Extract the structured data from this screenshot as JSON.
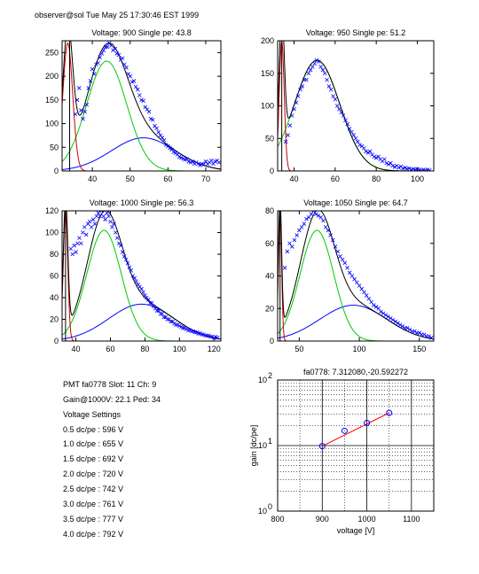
{
  "header": "observer@sol  Tue May 25 17:30:46 EST 1999",
  "info": {
    "pmt_line": "PMT fa0778 Slot: 11 Ch: 9",
    "gain_line": "Gain@1000V: 22.1 Ped: 34",
    "settings_title": "Voltage Settings",
    "settings": [
      "0.5 dc/pe : 596 V",
      "1.0 dc/pe : 655 V",
      "1.5 dc/pe : 692 V",
      "2.0 dc/pe : 720 V",
      "2.5 dc/pe : 742 V",
      "3.0 dc/pe : 761 V",
      "3.5 dc/pe : 777 V",
      "4.0 dc/pe : 792 V"
    ]
  },
  "colors": {
    "data_points": "#0000ff",
    "total_fit": "#000000",
    "single_pe_fit": "#00cc00",
    "double_pe_fit": "#0000ff",
    "pedestal": "#cc0000",
    "gain_fit": "#ff0000",
    "gain_points": "#0000ff"
  },
  "chart_data": [
    {
      "type": "scatter",
      "title": "Voltage: 900 Single pe: 43.8",
      "xlim": [
        32,
        74
      ],
      "ylim": [
        0,
        275
      ],
      "xticks": [
        40,
        50,
        60,
        70
      ],
      "yticks": [
        0,
        50,
        100,
        150,
        200,
        250
      ],
      "pedestal_x": 34,
      "fits": {
        "single": {
          "mu": 43.8,
          "sigma": 5.3,
          "amp": 232
        },
        "double": {
          "mu": 53.5,
          "sigma": 8.5,
          "amp": 70
        },
        "pedestal": {
          "mu": 33.5,
          "sigma": 1.3,
          "amp": 270
        }
      },
      "points": [
        [
          35.5,
          120
        ],
        [
          36,
          150
        ],
        [
          36.5,
          175
        ],
        [
          37,
          128
        ],
        [
          37.5,
          110
        ],
        [
          38,
          125
        ],
        [
          38.5,
          140
        ],
        [
          39,
          175
        ],
        [
          39.5,
          190
        ],
        [
          40,
          215
        ],
        [
          40.5,
          205
        ],
        [
          41,
          225
        ],
        [
          41.5,
          228
        ],
        [
          42,
          240
        ],
        [
          42.5,
          248
        ],
        [
          43,
          255
        ],
        [
          43.5,
          262
        ],
        [
          44,
          262
        ],
        [
          44.5,
          270
        ],
        [
          45,
          265
        ],
        [
          45.5,
          255
        ],
        [
          46,
          258
        ],
        [
          46.5,
          248
        ],
        [
          47,
          245
        ],
        [
          47.5,
          235
        ],
        [
          48,
          238
        ],
        [
          48.5,
          225
        ],
        [
          49,
          218
        ],
        [
          49.5,
          205
        ],
        [
          50,
          200
        ],
        [
          50.5,
          188
        ],
        [
          51,
          190
        ],
        [
          51.5,
          178
        ],
        [
          52,
          172
        ],
        [
          52.5,
          160
        ],
        [
          53,
          150
        ],
        [
          53.5,
          148
        ],
        [
          54,
          135
        ],
        [
          54.5,
          130
        ],
        [
          55,
          125
        ],
        [
          55.5,
          110
        ],
        [
          56,
          108
        ],
        [
          56.5,
          95
        ],
        [
          57,
          90
        ],
        [
          57.5,
          82
        ],
        [
          58,
          75
        ],
        [
          58.5,
          70
        ],
        [
          59,
          65
        ],
        [
          59.5,
          55
        ],
        [
          60,
          52
        ],
        [
          60.5,
          48
        ],
        [
          61,
          45
        ],
        [
          61.5,
          40
        ],
        [
          62,
          38
        ],
        [
          62.5,
          35
        ],
        [
          63,
          30
        ],
        [
          63.5,
          28
        ],
        [
          64,
          26
        ],
        [
          64.5,
          24
        ],
        [
          65,
          25
        ],
        [
          65.5,
          20
        ],
        [
          66,
          18
        ],
        [
          66.5,
          20
        ],
        [
          67,
          15
        ],
        [
          67.5,
          18
        ],
        [
          68,
          15
        ],
        [
          68.5,
          12
        ],
        [
          69,
          15
        ],
        [
          69.5,
          14
        ],
        [
          70,
          20
        ],
        [
          70.5,
          15
        ],
        [
          71,
          18
        ],
        [
          71.5,
          22
        ],
        [
          72,
          15
        ],
        [
          72.5,
          20
        ],
        [
          73,
          22
        ],
        [
          73.5,
          18
        ]
      ]
    },
    {
      "type": "scatter",
      "title": "Voltage: 950 Single pe: 51.2",
      "xlim": [
        32,
        108
      ],
      "ylim": [
        0,
        200
      ],
      "xticks": [
        40,
        60,
        80,
        100
      ],
      "yticks": [
        0,
        50,
        100,
        150,
        200
      ],
      "pedestal_x": 34,
      "fits": {
        "single": {
          "mu": 51.2,
          "sigma": 11,
          "amp": 170
        },
        "double": {
          "mu": 102,
          "sigma": 22,
          "amp": 0
        },
        "pedestal": {
          "mu": 34,
          "sigma": 1.2,
          "amp": 200
        }
      },
      "points": [
        [
          36,
          45
        ],
        [
          37,
          55
        ],
        [
          38,
          70
        ],
        [
          39,
          85
        ],
        [
          40,
          95
        ],
        [
          41,
          105
        ],
        [
          42,
          115
        ],
        [
          43,
          125
        ],
        [
          44,
          130
        ],
        [
          45,
          140
        ],
        [
          46,
          140
        ],
        [
          47,
          150
        ],
        [
          48,
          155
        ],
        [
          49,
          160
        ],
        [
          50,
          165
        ],
        [
          51,
          170
        ],
        [
          52,
          168
        ],
        [
          53,
          160
        ],
        [
          54,
          155
        ],
        [
          55,
          150
        ],
        [
          56,
          140
        ],
        [
          57,
          130
        ],
        [
          58,
          125
        ],
        [
          59,
          115
        ],
        [
          60,
          110
        ],
        [
          61,
          100
        ],
        [
          62,
          95
        ],
        [
          63,
          90
        ],
        [
          64,
          85
        ],
        [
          65,
          78
        ],
        [
          66,
          72
        ],
        [
          67,
          65
        ],
        [
          68,
          60
        ],
        [
          69,
          55
        ],
        [
          70,
          50
        ],
        [
          71,
          45
        ],
        [
          72,
          40
        ],
        [
          73,
          38
        ],
        [
          74,
          35
        ],
        [
          75,
          30
        ],
        [
          76,
          28
        ],
        [
          77,
          30
        ],
        [
          78,
          25
        ],
        [
          79,
          22
        ],
        [
          80,
          20
        ],
        [
          81,
          22
        ],
        [
          82,
          18
        ],
        [
          83,
          15
        ],
        [
          84,
          18
        ],
        [
          85,
          12
        ],
        [
          86,
          10
        ],
        [
          87,
          12
        ],
        [
          88,
          8
        ],
        [
          89,
          6
        ],
        [
          90,
          8
        ],
        [
          91,
          5
        ],
        [
          92,
          7
        ],
        [
          93,
          4
        ],
        [
          94,
          5
        ],
        [
          95,
          3
        ],
        [
          96,
          4
        ],
        [
          97,
          2
        ],
        [
          98,
          3
        ],
        [
          99,
          2
        ],
        [
          100,
          3
        ],
        [
          101,
          2
        ],
        [
          102,
          1
        ],
        [
          103,
          2
        ],
        [
          104,
          1
        ],
        [
          105,
          2
        ],
        [
          106,
          1
        ]
      ]
    },
    {
      "type": "scatter",
      "title": "Voltage: 1000 Single pe: 56.3",
      "xlim": [
        32,
        124
      ],
      "ylim": [
        0,
        120
      ],
      "xticks": [
        40,
        60,
        80,
        100,
        120
      ],
      "yticks": [
        0,
        20,
        40,
        60,
        80,
        100,
        120
      ],
      "pedestal_x": 34,
      "fits": {
        "single": {
          "mu": 56.3,
          "sigma": 10,
          "amp": 102
        },
        "double": {
          "mu": 78,
          "sigma": 19,
          "amp": 34
        },
        "pedestal": {
          "mu": 34,
          "sigma": 1.3,
          "amp": 120
        }
      },
      "points": [
        [
          37,
          85
        ],
        [
          38,
          80
        ],
        [
          39,
          88
        ],
        [
          40,
          82
        ],
        [
          41,
          90
        ],
        [
          42,
          95
        ],
        [
          43,
          90
        ],
        [
          44,
          100
        ],
        [
          45,
          105
        ],
        [
          46,
          98
        ],
        [
          47,
          108
        ],
        [
          48,
          110
        ],
        [
          49,
          105
        ],
        [
          50,
          112
        ],
        [
          51,
          108
        ],
        [
          52,
          115
        ],
        [
          53,
          118
        ],
        [
          54,
          115
        ],
        [
          55,
          120
        ],
        [
          56,
          115
        ],
        [
          57,
          112
        ],
        [
          58,
          118
        ],
        [
          59,
          115
        ],
        [
          60,
          110
        ],
        [
          61,
          105
        ],
        [
          62,
          108
        ],
        [
          63,
          100
        ],
        [
          64,
          95
        ],
        [
          65,
          90
        ],
        [
          66,
          88
        ],
        [
          67,
          82
        ],
        [
          68,
          78
        ],
        [
          69,
          75
        ],
        [
          70,
          72
        ],
        [
          71,
          68
        ],
        [
          72,
          65
        ],
        [
          73,
          60
        ],
        [
          74,
          58
        ],
        [
          75,
          55
        ],
        [
          76,
          52
        ],
        [
          77,
          50
        ],
        [
          78,
          48
        ],
        [
          79,
          45
        ],
        [
          80,
          42
        ],
        [
          81,
          40
        ],
        [
          82,
          38
        ],
        [
          83,
          35
        ],
        [
          84,
          35
        ],
        [
          85,
          32
        ],
        [
          86,
          30
        ],
        [
          87,
          28
        ],
        [
          88,
          28
        ],
        [
          89,
          25
        ],
        [
          90,
          25
        ],
        [
          91,
          22
        ],
        [
          92,
          22
        ],
        [
          93,
          20
        ],
        [
          94,
          20
        ],
        [
          95,
          18
        ],
        [
          96,
          18
        ],
        [
          97,
          16
        ],
        [
          98,
          15
        ],
        [
          99,
          15
        ],
        [
          100,
          14
        ],
        [
          101,
          13
        ],
        [
          102,
          12
        ],
        [
          103,
          12
        ],
        [
          104,
          11
        ],
        [
          105,
          10
        ],
        [
          106,
          10
        ],
        [
          107,
          9
        ],
        [
          108,
          9
        ],
        [
          109,
          8
        ],
        [
          110,
          8
        ],
        [
          111,
          7
        ],
        [
          112,
          7
        ],
        [
          113,
          6
        ],
        [
          114,
          6
        ],
        [
          115,
          5
        ],
        [
          116,
          5
        ],
        [
          117,
          5
        ],
        [
          118,
          4
        ],
        [
          119,
          4
        ],
        [
          120,
          3
        ],
        [
          121,
          4
        ],
        [
          122,
          3
        ]
      ]
    },
    {
      "type": "scatter",
      "title": "Voltage: 1050 Single pe: 64.7",
      "xlim": [
        32,
        162
      ],
      "ylim": [
        0,
        80
      ],
      "xticks": [
        50,
        100,
        150
      ],
      "yticks": [
        0,
        20,
        40,
        60,
        80
      ],
      "pedestal_x": 34,
      "fits": {
        "single": {
          "mu": 64.7,
          "sigma": 14,
          "amp": 68
        },
        "double": {
          "mu": 95,
          "sigma": 28,
          "amp": 22
        },
        "pedestal": {
          "mu": 34,
          "sigma": 1.3,
          "amp": 80
        }
      },
      "points": [
        [
          38,
          45
        ],
        [
          40,
          55
        ],
        [
          42,
          60
        ],
        [
          44,
          58
        ],
        [
          46,
          62
        ],
        [
          48,
          65
        ],
        [
          50,
          68
        ],
        [
          52,
          70
        ],
        [
          54,
          72
        ],
        [
          56,
          75
        ],
        [
          58,
          76
        ],
        [
          60,
          78
        ],
        [
          62,
          80
        ],
        [
          64,
          78
        ],
        [
          66,
          77
        ],
        [
          68,
          76
        ],
        [
          70,
          74
        ],
        [
          72,
          70
        ],
        [
          74,
          68
        ],
        [
          76,
          65
        ],
        [
          78,
          62
        ],
        [
          80,
          58
        ],
        [
          82,
          55
        ],
        [
          84,
          52
        ],
        [
          86,
          50
        ],
        [
          88,
          48
        ],
        [
          90,
          45
        ],
        [
          92,
          42
        ],
        [
          94,
          40
        ],
        [
          96,
          38
        ],
        [
          98,
          36
        ],
        [
          100,
          34
        ],
        [
          102,
          32
        ],
        [
          104,
          30
        ],
        [
          106,
          28
        ],
        [
          108,
          26
        ],
        [
          110,
          24
        ],
        [
          112,
          22
        ],
        [
          114,
          21
        ],
        [
          116,
          20
        ],
        [
          118,
          18
        ],
        [
          120,
          17
        ],
        [
          122,
          16
        ],
        [
          124,
          15
        ],
        [
          126,
          14
        ],
        [
          128,
          13
        ],
        [
          130,
          12
        ],
        [
          132,
          11
        ],
        [
          134,
          10
        ],
        [
          136,
          9
        ],
        [
          138,
          8
        ],
        [
          140,
          8
        ],
        [
          142,
          7
        ],
        [
          144,
          6
        ],
        [
          146,
          6
        ],
        [
          148,
          5
        ],
        [
          150,
          5
        ],
        [
          152,
          4
        ],
        [
          154,
          4
        ],
        [
          156,
          3
        ],
        [
          158,
          3
        ],
        [
          160,
          2
        ]
      ]
    },
    {
      "type": "line",
      "title": "fa0778: 7.312080,-20.592272",
      "xlabel": "voltage [V]",
      "ylabel": "gain [dc/pe]",
      "xlim": [
        800,
        1150
      ],
      "xticks": [
        800,
        900,
        1000,
        1100
      ],
      "y_scale": "log",
      "ylim": [
        1,
        100
      ],
      "ytick_labels": [
        "10",
        "10",
        "10"
      ],
      "ytick_exponents": [
        "0",
        "1",
        "2"
      ],
      "grid": "dotted",
      "points": [
        [
          900,
          9.8
        ],
        [
          950,
          16.8
        ],
        [
          1000,
          22.1
        ],
        [
          1050,
          31.5
        ]
      ],
      "fit_line": [
        [
          900,
          9.8
        ],
        [
          1050,
          31.5
        ]
      ]
    }
  ]
}
